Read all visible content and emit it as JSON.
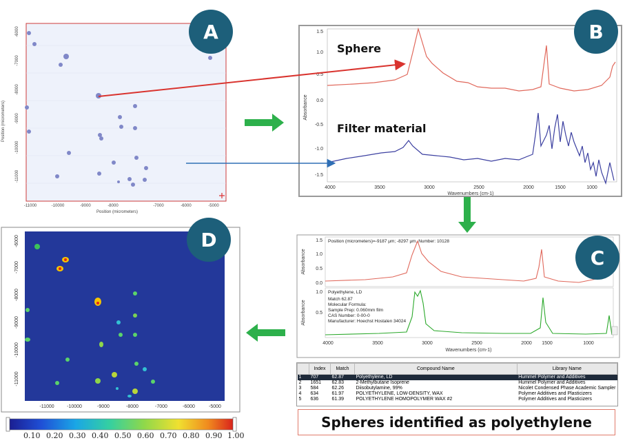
{
  "badges": {
    "a": "A",
    "b": "B",
    "c": "C",
    "d": "D"
  },
  "panel_a": {
    "ylabel": "Position (micrometers)",
    "xlabel": "Position (micrometers)",
    "xticks": [
      "-11000",
      "-10000",
      "-9000",
      "-8000",
      "-7000",
      "-6000",
      "-5000"
    ],
    "yticks": [
      "-6000",
      "-7000",
      "-8000",
      "-9000",
      "-10000",
      "-11000"
    ]
  },
  "panel_b": {
    "sphere_label": "Sphere",
    "filter_label": "Filter material",
    "ylabel": "Absorbance",
    "xlabel": "Wavenumbers (cm-1)",
    "xticks": [
      "4000",
      "3500",
      "3000",
      "2500",
      "2000",
      "1500",
      "1000"
    ],
    "yticks": [
      "1.5",
      "1.0",
      "0.5",
      "0.0",
      "-0.5",
      "-1.0",
      "-1.5"
    ]
  },
  "panel_c": {
    "position_text": "Position (micrometers)=-9187 μm; -8297 μm, Number: 10128",
    "ylabel_top": "Absorbance",
    "ylabel_bottom": "Absorbance",
    "xlabel": "Wavenumbers (cm-1)",
    "xticks": [
      "4000",
      "3500",
      "3000",
      "2500",
      "2000",
      "1500",
      "1000"
    ],
    "yticks_top": [
      "1.5",
      "1.0",
      "0.5",
      "0.0"
    ],
    "yticks_bottom": [
      "1.0",
      "0.5"
    ],
    "info": [
      "Polyethylene, LD",
      "Match 62.87",
      "Molecular Formula:",
      "Sample Prep: 0.060mm film",
      "CAS Number:     0-00-0",
      "Manufacturer: Hoechst Hostalen 34024"
    ]
  },
  "table": {
    "headers": [
      "Index",
      "Match",
      "Compound Name",
      "Library Name"
    ],
    "rows": [
      [
        "1",
        "707",
        "62.87",
        "Polyethylene, LD",
        "Hummel Polymer and Additives"
      ],
      [
        "2",
        "1651",
        "62.83",
        "2-Methylbutane Isoprene",
        "Hummel Polymer and Additives"
      ],
      [
        "3",
        "584",
        "62.26",
        "Diisobutylamine, 99%",
        "Nicolet Condensed Phase Academic Sampler"
      ],
      [
        "4",
        "634",
        "61.97",
        "POLYETHYLENE, LOW-DENSITY, WAX",
        "Polymer Additives and Plasticizers"
      ],
      [
        "5",
        "636",
        "61.39",
        "POLYETHYLENE HOMOPOLYMER WAX #2",
        "Polymer Additives and Plasticizers"
      ]
    ]
  },
  "conclusion": "Spheres identified as polyethylene",
  "panel_d": {
    "xticks": [
      "-11000",
      "-10000",
      "-9000",
      "-8000",
      "-7000",
      "-6000",
      "-5000"
    ],
    "yticks": [
      "-6000",
      "-7000",
      "-8000",
      "-9000",
      "-10000",
      "-11000"
    ]
  },
  "colorbar": {
    "ticks": [
      "0.10",
      "0.20",
      "0.30",
      "0.40",
      "0.50",
      "0.60",
      "0.70",
      "0.80",
      "0.90",
      "1.00"
    ]
  },
  "colors": {
    "badge": "#1d5f7a",
    "sphere_spectrum": "#e0675a",
    "filter_spectrum": "#3b3fa0",
    "reference_spectrum": "#2aa82a",
    "green_arrow": "#2db04b",
    "red_arrow": "#d9332e",
    "blue_arrow": "#2f6fb5",
    "map_bg": "#23389a"
  }
}
